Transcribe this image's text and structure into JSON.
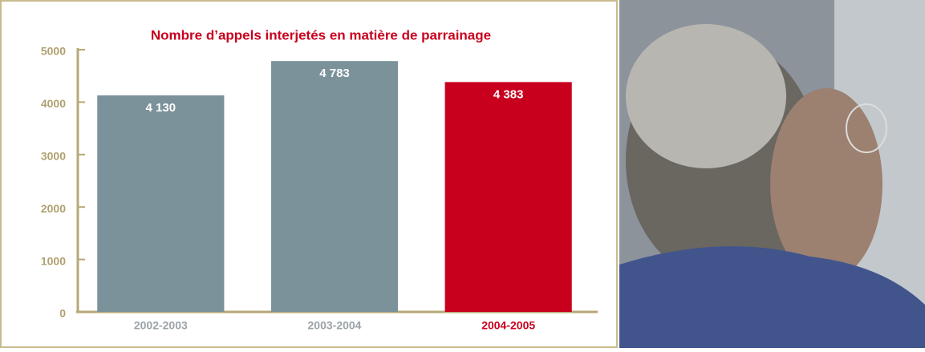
{
  "chart_data": {
    "type": "bar",
    "title": "Nombre d’appels interjetés en matière de parrainage",
    "categories": [
      "2002-2003",
      "2003-2004",
      "2004-2005"
    ],
    "values": [
      4130,
      4783,
      4383
    ],
    "value_labels": [
      "4 130",
      "4 783",
      "4 383"
    ],
    "colors": [
      "#7b929a",
      "#7b929a",
      "#c8001e"
    ],
    "category_colors": [
      "#9aa3a8",
      "#9aa3a8",
      "#c8001e"
    ],
    "ylim": [
      0,
      5000
    ],
    "yticks": [
      0,
      1000,
      2000,
      3000,
      4000,
      5000
    ],
    "grid": false
  }
}
